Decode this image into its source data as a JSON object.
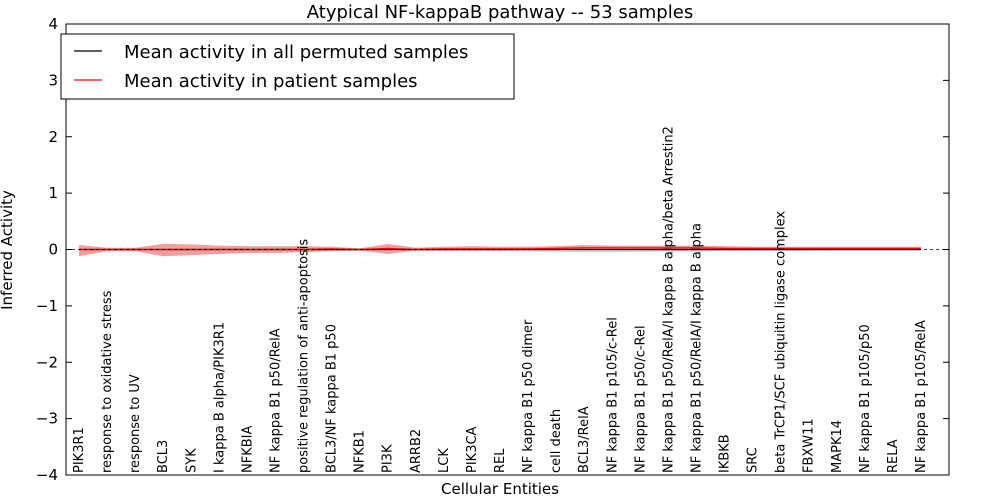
{
  "chart_data": {
    "type": "line",
    "title": "Atypical NF-kappaB pathway -- 53 samples",
    "xlabel": "Cellular Entities",
    "ylabel": "Inferred Activity",
    "ylim": [
      -4,
      4
    ],
    "yticks": [
      "−4",
      "−3",
      "−2",
      "−1",
      "0",
      "1",
      "2",
      "3",
      "4"
    ],
    "grid": false,
    "legend_position": "top-left",
    "categories": [
      "PIK3R1",
      "response to oxidative stress",
      "response to UV",
      "BCL3",
      "SYK",
      "I kappa B alpha/PIK3R1",
      "NFKBIA",
      "NF kappa B1 p50/RelA",
      "positive regulation of anti-apoptosis",
      "BCL3/NF kappa B1 p50",
      "NFKB1",
      "PI3K",
      "ARRB2",
      "LCK",
      "PIK3CA",
      "REL",
      "NF kappa B1 p50 dimer",
      "cell death",
      "BCL3/RelA",
      "NF kappa B1 p105/c-Rel",
      "NF kappa B1 p50/c-Rel",
      "NF kappa B1 p50/RelA/I kappa B alpha/beta Arrestin2",
      "NF kappa B1 p50/RelA/I kappa B alpha",
      "IKBKB",
      "SRC",
      "beta TrCP1/SCF ubiquitin ligase complex",
      "FBXW11",
      "MAPK14",
      "NF kappa B1 p105/p50",
      "RELA",
      "NF kappa B1 p105/RelA"
    ],
    "series": [
      {
        "name": "Mean activity in all permuted samples",
        "color": "#000000",
        "values": [
          0,
          0,
          0,
          0,
          0,
          0,
          0,
          0,
          0,
          0,
          0,
          0,
          0,
          0,
          0,
          0,
          0,
          0,
          0,
          0,
          0,
          0,
          0,
          0,
          0,
          0,
          0,
          0,
          0,
          0,
          0
        ],
        "band_low": [
          -0.02,
          -0.02,
          -0.02,
          -0.02,
          -0.03,
          -0.03,
          -0.03,
          -0.03,
          -0.03,
          -0.03,
          -0.02,
          -0.02,
          -0.03,
          -0.03,
          -0.03,
          -0.03,
          -0.04,
          -0.05,
          -0.05,
          -0.05,
          -0.04,
          -0.04,
          -0.04,
          -0.03,
          -0.03,
          -0.03,
          -0.03,
          -0.02,
          -0.02,
          -0.02,
          -0.02
        ],
        "band_high": [
          0.02,
          0.02,
          0.02,
          0.02,
          0.03,
          0.03,
          0.03,
          0.03,
          0.03,
          0.03,
          0.02,
          0.02,
          0.03,
          0.03,
          0.03,
          0.03,
          0.04,
          0.05,
          0.05,
          0.05,
          0.04,
          0.04,
          0.04,
          0.03,
          0.03,
          0.03,
          0.03,
          0.02,
          0.02,
          0.02,
          0.02
        ],
        "band_color": "#bbbbbb"
      },
      {
        "name": "Mean activity in patient samples",
        "color": "#ff0000",
        "values": [
          0.0,
          0.0,
          0.0,
          0.0,
          0.0,
          0.0,
          0.0,
          0.0,
          0.0,
          0.01,
          0.0,
          0.02,
          0.0,
          0.01,
          0.01,
          0.01,
          0.01,
          0.02,
          0.03,
          0.03,
          0.03,
          0.03,
          0.03,
          0.02,
          0.02,
          0.02,
          0.02,
          0.02,
          0.02,
          0.02,
          0.02
        ],
        "band_low": [
          -0.12,
          -0.03,
          -0.03,
          -0.12,
          -0.1,
          -0.08,
          -0.06,
          -0.06,
          -0.05,
          -0.03,
          -0.02,
          -0.08,
          -0.02,
          -0.02,
          -0.02,
          -0.02,
          -0.01,
          -0.01,
          0.0,
          -0.01,
          -0.01,
          -0.02,
          -0.02,
          -0.01,
          -0.01,
          -0.01,
          -0.01,
          -0.01,
          -0.01,
          -0.01,
          -0.01
        ],
        "band_high": [
          0.08,
          0.03,
          0.03,
          0.1,
          0.09,
          0.07,
          0.06,
          0.06,
          0.06,
          0.05,
          0.02,
          0.1,
          0.03,
          0.05,
          0.06,
          0.05,
          0.05,
          0.06,
          0.08,
          0.07,
          0.07,
          0.07,
          0.07,
          0.06,
          0.05,
          0.05,
          0.05,
          0.05,
          0.05,
          0.05,
          0.05
        ],
        "band_color": "#f08080"
      }
    ]
  }
}
